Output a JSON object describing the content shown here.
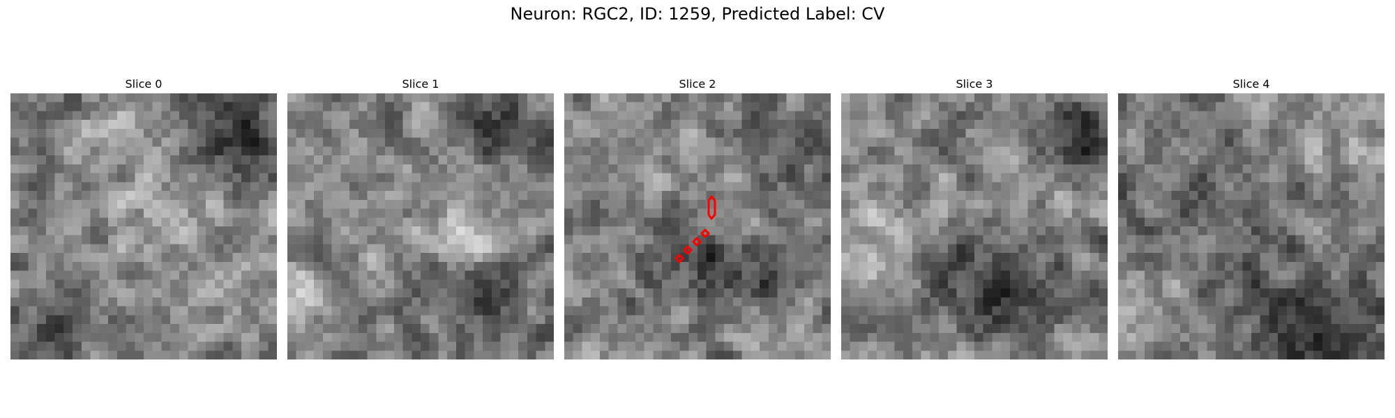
{
  "figure": {
    "title": "Neuron: RGC2, ID: 1259, Predicted Label: CV"
  },
  "panels": [
    {
      "title": "Slice 0"
    },
    {
      "title": "Slice 1"
    },
    {
      "title": "Slice 2"
    },
    {
      "title": "Slice 3"
    },
    {
      "title": "Slice 4"
    }
  ],
  "colors": {
    "contour": "#ff0000",
    "background": "#ffffff"
  }
}
